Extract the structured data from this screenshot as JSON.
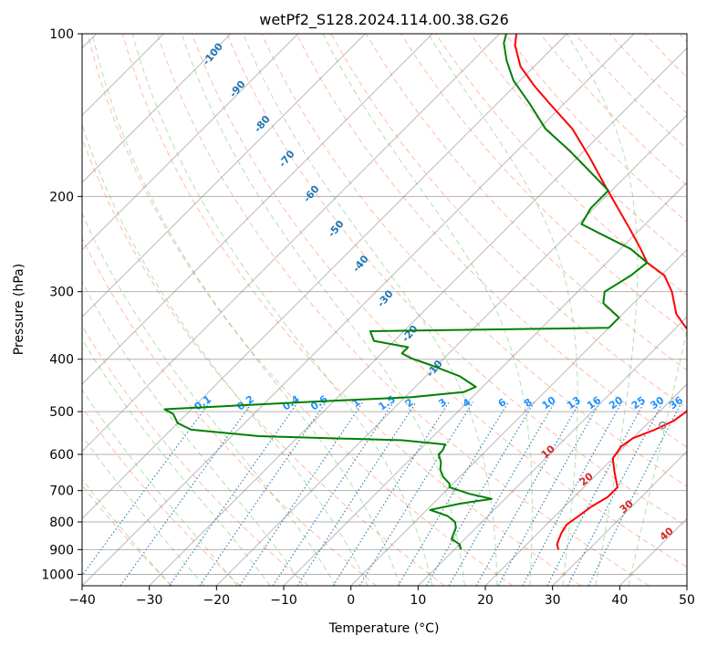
{
  "chart_data": {
    "type": "line",
    "title": "wetPf2_S128.2024.114.00.38.G26",
    "xlabel": "Temperature (°C)",
    "ylabel": "Pressure (hPa)",
    "xlim": [
      -40,
      50
    ],
    "ylim": [
      1050,
      100
    ],
    "y_scale": "log",
    "grid": true,
    "x_ticks": [
      -40,
      -30,
      -20,
      -10,
      0,
      10,
      20,
      30,
      40,
      50
    ],
    "y_ticks": [
      100,
      200,
      300,
      400,
      500,
      600,
      700,
      800,
      900,
      1000
    ],
    "skew": 35,
    "colors": {
      "temperature": "#ff0000",
      "dewpoint": "#008000",
      "dry_adiabats": "#ff6a3d",
      "moist_adiabats": "#2ca02c",
      "mixing_ratio": "#1f77b4",
      "isotherms": "#808080",
      "isobars": "#808080",
      "dry_adiabat_labels": "#d62728",
      "moist_adiabat_labels": "#1f77b4",
      "mixing_labels": "#1e90ff",
      "lcl_marker": "#8c8c8c"
    },
    "series": [
      {
        "key": "temperature",
        "points": [
          [
            900,
            25.5
          ],
          [
            880,
            24.5
          ],
          [
            860,
            24.0
          ],
          [
            840,
            23.5
          ],
          [
            810,
            23.0
          ],
          [
            780,
            23.5
          ],
          [
            750,
            24.0
          ],
          [
            720,
            25.0
          ],
          [
            690,
            25.0
          ],
          [
            650,
            22.5
          ],
          [
            610,
            20.0
          ],
          [
            580,
            19.5
          ],
          [
            560,
            20.0
          ],
          [
            540,
            22.0
          ],
          [
            520,
            23.5
          ],
          [
            500,
            24.0
          ],
          [
            470,
            23.0
          ],
          [
            440,
            22.0
          ],
          [
            420,
            21.0
          ],
          [
            400,
            19.0
          ],
          [
            370,
            15.5
          ],
          [
            350,
            11.5
          ],
          [
            330,
            8.0
          ],
          [
            300,
            4.0
          ],
          [
            280,
            0.5
          ],
          [
            265,
            -4.0
          ],
          [
            250,
            -7.0
          ],
          [
            230,
            -11.5
          ],
          [
            210,
            -16.5
          ],
          [
            190,
            -22.0
          ],
          [
            170,
            -28.0
          ],
          [
            150,
            -35.0
          ],
          [
            135,
            -42.0
          ],
          [
            125,
            -47.0
          ],
          [
            115,
            -52.0
          ],
          [
            105,
            -56.0
          ],
          [
            100,
            -57.5
          ]
        ]
      },
      {
        "key": "dewpoint",
        "points": [
          [
            900,
            11.0
          ],
          [
            880,
            10.0
          ],
          [
            860,
            8.0
          ],
          [
            840,
            7.5
          ],
          [
            820,
            7.0
          ],
          [
            800,
            6.0
          ],
          [
            780,
            4.0
          ],
          [
            760,
            0.5
          ],
          [
            740,
            4.0
          ],
          [
            725,
            8.0
          ],
          [
            710,
            4.0
          ],
          [
            690,
            0.0
          ],
          [
            680,
            -0.5
          ],
          [
            660,
            -2.5
          ],
          [
            640,
            -4.0
          ],
          [
            620,
            -5.0
          ],
          [
            600,
            -6.5
          ],
          [
            590,
            -6.5
          ],
          [
            575,
            -7.0
          ],
          [
            565,
            -14.0
          ],
          [
            555,
            -36.0
          ],
          [
            540,
            -47.0
          ],
          [
            525,
            -50.0
          ],
          [
            505,
            -52.0
          ],
          [
            495,
            -54.0
          ],
          [
            480,
            -34.0
          ],
          [
            470,
            -19.0
          ],
          [
            460,
            -12.0
          ],
          [
            450,
            -11.0
          ],
          [
            430,
            -15.0
          ],
          [
            410,
            -21.0
          ],
          [
            398,
            -25.0
          ],
          [
            390,
            -27.0
          ],
          [
            380,
            -27.0
          ],
          [
            370,
            -33.0
          ],
          [
            355,
            -35.0
          ],
          [
            350,
            0.0
          ],
          [
            335,
            0.0
          ],
          [
            315,
            -4.5
          ],
          [
            300,
            -6.0
          ],
          [
            280,
            -4.5
          ],
          [
            265,
            -4.0
          ],
          [
            250,
            -8.5
          ],
          [
            235,
            -15.0
          ],
          [
            225,
            -19.5
          ],
          [
            210,
            -20.5
          ],
          [
            195,
            -20.5
          ],
          [
            180,
            -26.0
          ],
          [
            165,
            -32.0
          ],
          [
            150,
            -39.0
          ],
          [
            135,
            -45.0
          ],
          [
            122,
            -51.0
          ],
          [
            112,
            -55.0
          ],
          [
            104,
            -58.0
          ],
          [
            100,
            -59.0
          ]
        ]
      }
    ],
    "lcl": {
      "pressure": 530,
      "temperature": 22.5
    },
    "dry_adiabat_labels": [
      "10",
      "20",
      "30",
      "40"
    ],
    "moist_adiabat_labels": [
      "-100",
      "-90",
      "-80",
      "-70",
      "-60",
      "-50",
      "-40",
      "-30",
      "-20",
      "-10"
    ],
    "mixing_ratio_labels": [
      "0.1",
      "0.2",
      "0.4",
      "0.6",
      "1",
      "1.5",
      "2",
      "3",
      "4",
      "6",
      "8",
      "10",
      "13",
      "16",
      "20",
      "25",
      "30",
      "36"
    ]
  }
}
